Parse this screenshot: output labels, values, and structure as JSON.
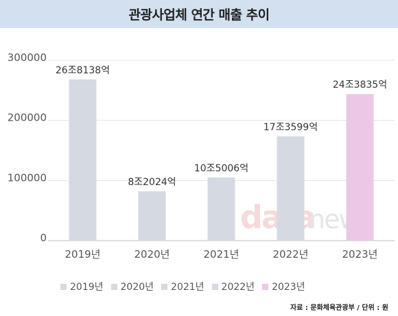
{
  "title": "관광사업체 연간 매출 추이",
  "source": "자료 : 문화체육관광부 / 단위 : 원",
  "watermark": {
    "part1": "data",
    "part2": "news"
  },
  "chart_data": {
    "type": "bar",
    "categories": [
      "2019년",
      "2020년",
      "2021년",
      "2022년",
      "2023년"
    ],
    "values": [
      268138,
      82024,
      105006,
      173599,
      243835
    ],
    "data_labels": [
      "26조8138억",
      "8조2024억",
      "10조5006억",
      "17조3599억",
      "24조3835억"
    ],
    "colors": [
      "#d5d9e2",
      "#d5d9e2",
      "#d5d9e2",
      "#d5d9e2",
      "#ecc7e6"
    ],
    "ylim": [
      0,
      300000
    ],
    "yticks": [
      "0",
      "100000",
      "200000",
      "300000"
    ],
    "grid": true,
    "legend": {
      "position": "bottom",
      "labels": [
        "2019년",
        "2020년",
        "2021년",
        "2022년",
        "2023년"
      ]
    }
  }
}
